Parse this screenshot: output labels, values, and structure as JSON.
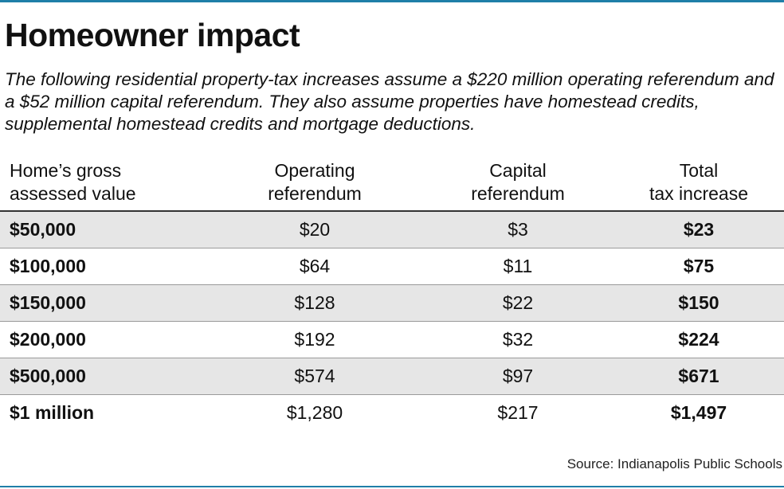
{
  "title": "Homeowner impact",
  "subtitle": "The following residential property-tax increases assume a $220 million operating referendum and a $52 million capital referendum. They also assume properties have homestead credits, supplemental homestead credits and mortgage deductions.",
  "table": {
    "headers": {
      "value_line1": "Home’s gross",
      "value_line2": "assessed value",
      "operating_line1": "Operating",
      "operating_line2": "referendum",
      "capital_line1": "Capital",
      "capital_line2": "referendum",
      "total_line1": "Total",
      "total_line2": "tax increase"
    },
    "rows": [
      {
        "value": "$50,000",
        "operating": "$20",
        "capital": "$3",
        "total": "$23"
      },
      {
        "value": "$100,000",
        "operating": "$64",
        "capital": "$11",
        "total": "$75"
      },
      {
        "value": "$150,000",
        "operating": "$128",
        "capital": "$22",
        "total": "$150"
      },
      {
        "value": "$200,000",
        "operating": "$192",
        "capital": "$32",
        "total": "$224"
      },
      {
        "value": "$500,000",
        "operating": "$574",
        "capital": "$97",
        "total": "$671"
      },
      {
        "value": "$1 million",
        "operating": "$1,280",
        "capital": "$217",
        "total": "$1,497"
      }
    ]
  },
  "source": "Source: Indianapolis Public Schools",
  "colors": {
    "accent_rule": "#1f7fa8",
    "row_shade": "#e6e6e6",
    "text": "#111111"
  }
}
